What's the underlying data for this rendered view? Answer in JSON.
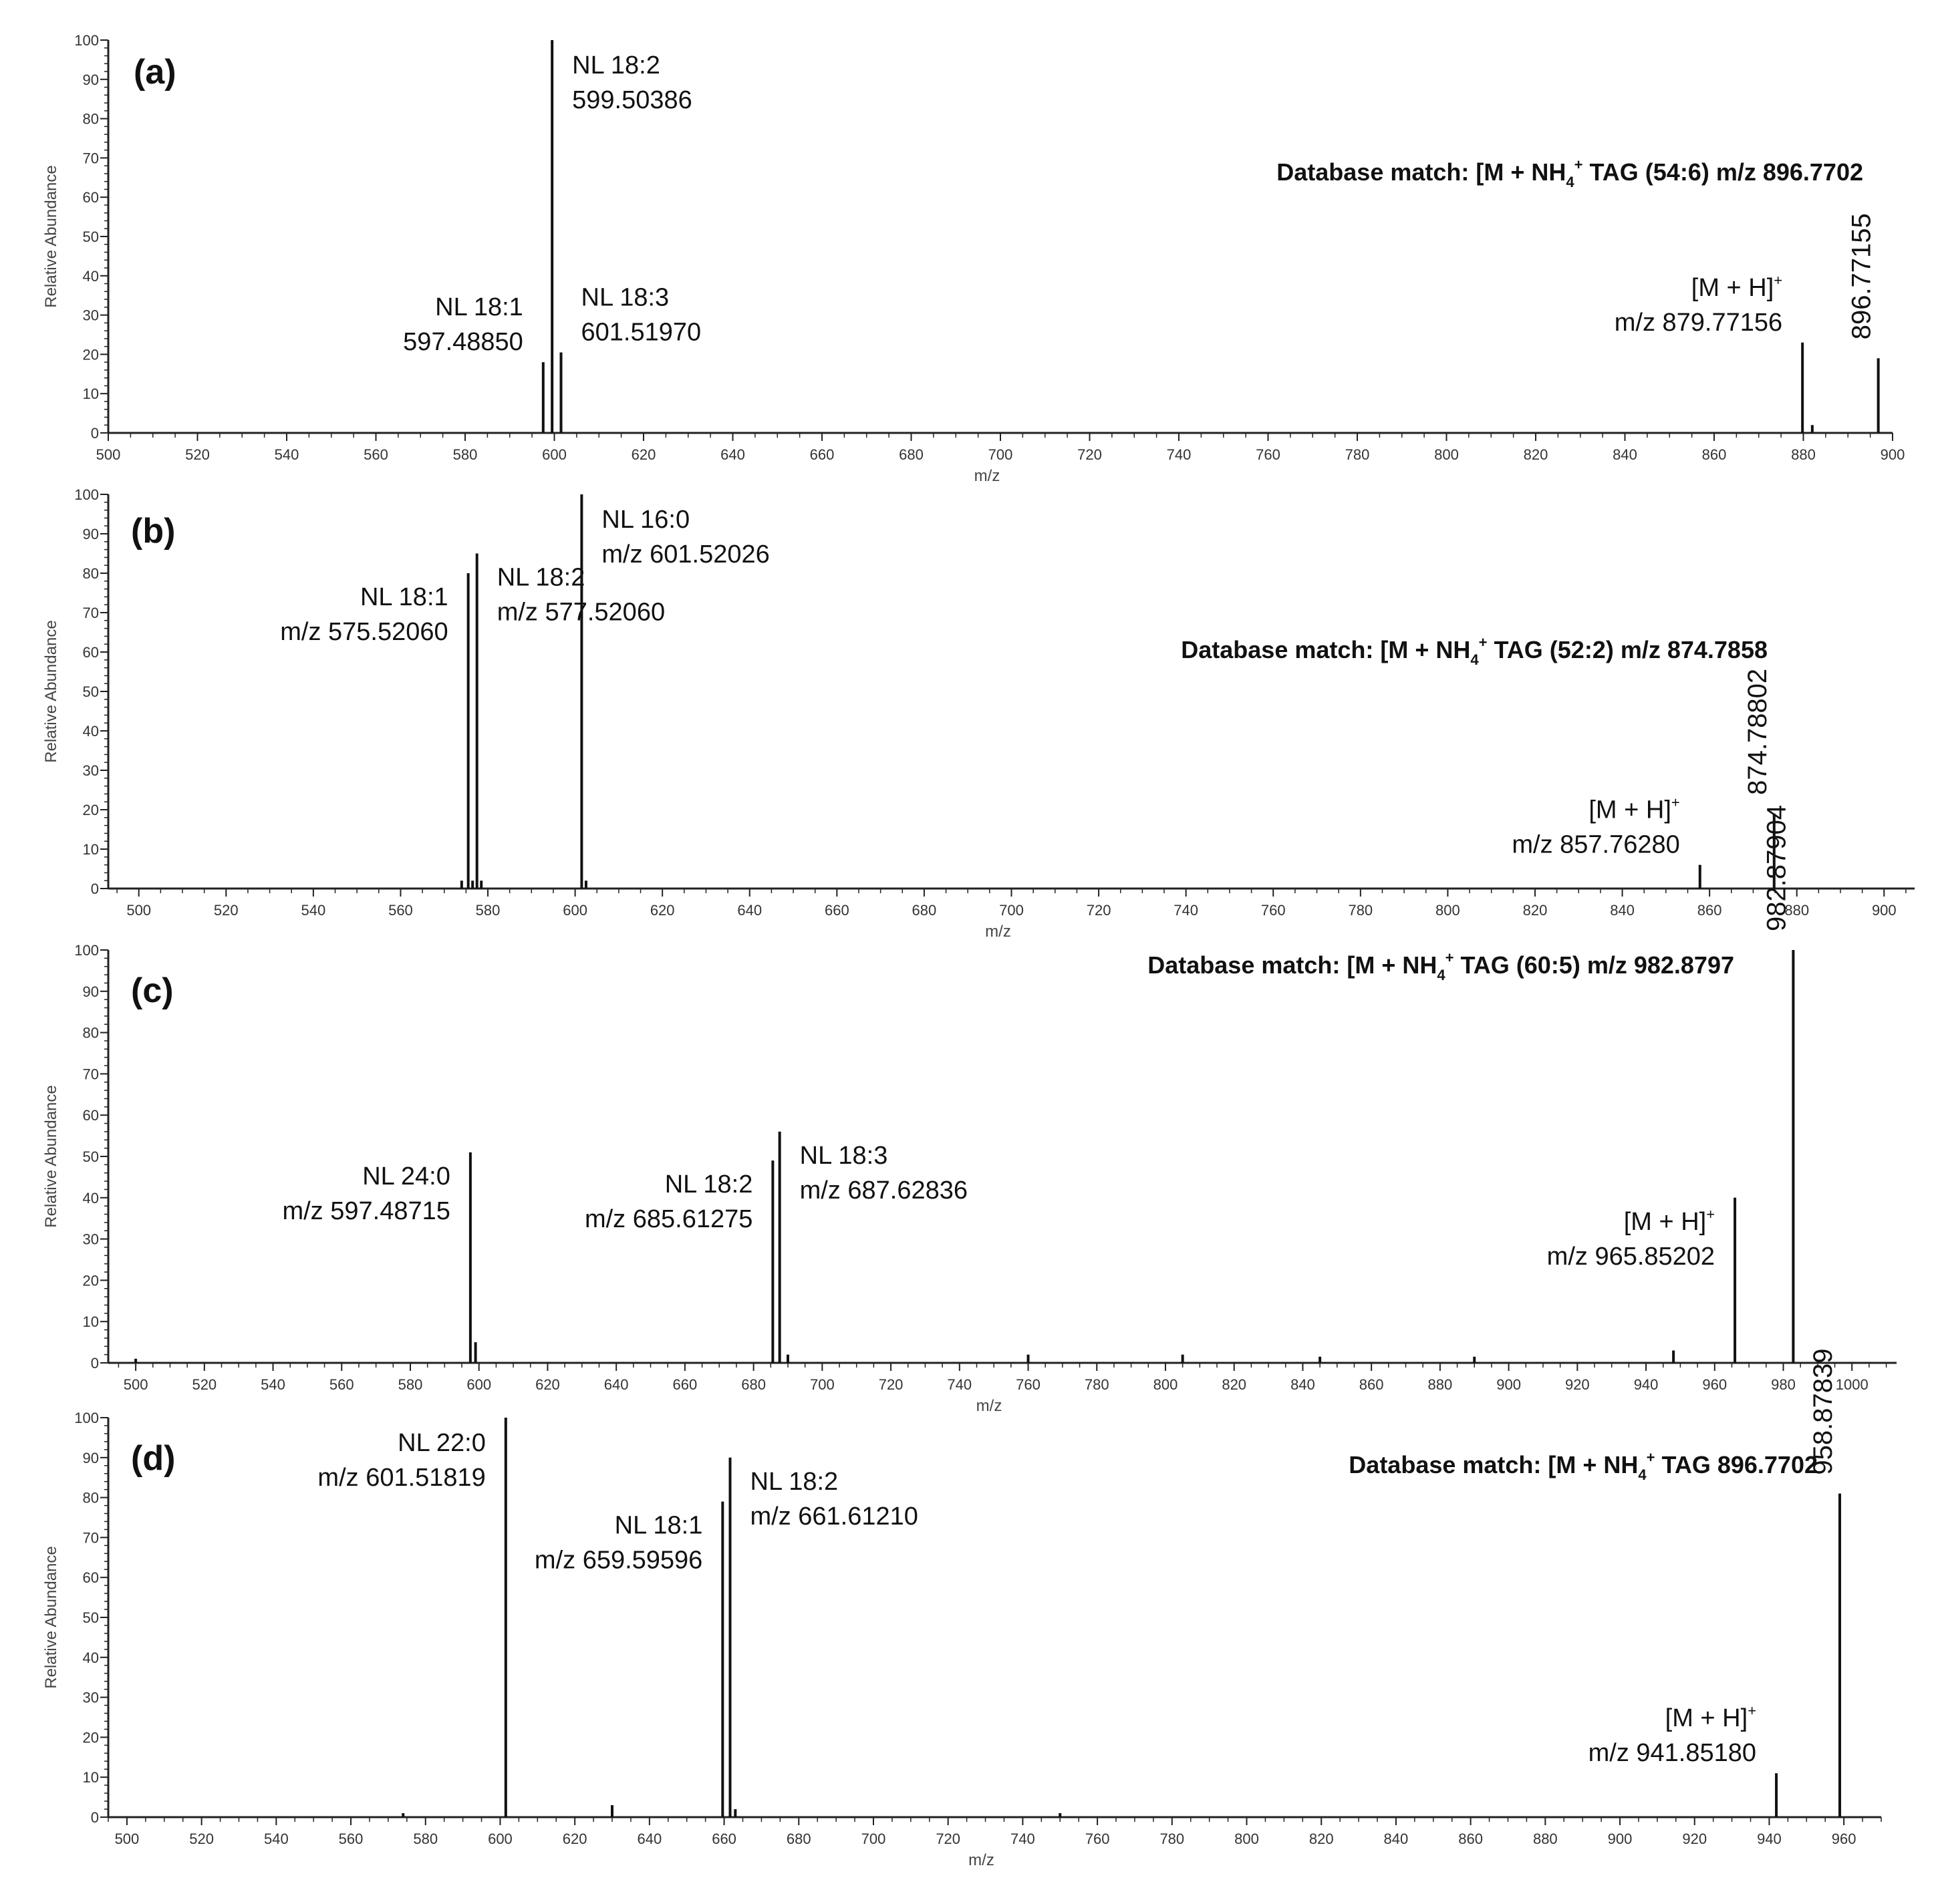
{
  "chart_data": [
    {
      "type": "bar",
      "panel": "(a)",
      "xlabel": "m/z",
      "ylabel": "Relative Abundance",
      "xlim": [
        500,
        900
      ],
      "ylim": [
        0,
        100
      ],
      "xticks": [
        500,
        520,
        540,
        560,
        580,
        600,
        620,
        640,
        660,
        680,
        700,
        720,
        740,
        760,
        780,
        800,
        820,
        840,
        860,
        880,
        900
      ],
      "yticks": [
        0,
        10,
        20,
        30,
        40,
        50,
        60,
        70,
        80,
        90,
        100
      ],
      "peaks": [
        {
          "x": 597.5,
          "y": 18
        },
        {
          "x": 599.5,
          "y": 100
        },
        {
          "x": 601.5,
          "y": 20.5
        },
        {
          "x": 882,
          "y": 2
        },
        {
          "x": 879.8,
          "y": 23
        },
        {
          "x": 896.8,
          "y": 19
        }
      ],
      "annotations": [
        {
          "lines": [
            "NL 18:2",
            "599.50386"
          ],
          "x": 599.5,
          "y": 100,
          "anchor": "start"
        },
        {
          "lines": [
            "NL 18:1",
            "597.48850"
          ],
          "x": 597.5,
          "y": 18,
          "anchor": "end"
        },
        {
          "lines": [
            "NL 18:3",
            "601.51970"
          ],
          "x": 601.5,
          "y": 20.5,
          "anchor": "start"
        },
        {
          "lines": [
            "[M + H]",
            "m/z 879.77156"
          ],
          "x": 879.8,
          "y": 23,
          "anchor": "end",
          "sup": "+"
        }
      ],
      "rotated_label": {
        "text": "896.77155",
        "x": 896.8
      },
      "database_match": {
        "prefix": "Database match: [M + NH",
        "sub": "4",
        "sup": "+",
        "suffix": " TAG (54:6) m/z 896.7702"
      }
    },
    {
      "type": "bar",
      "panel": "(b)",
      "xlabel": "m/z",
      "ylabel": "Relative Abundance",
      "xlim": [
        493,
        907
      ],
      "ylim": [
        0,
        100
      ],
      "xticks": [
        500,
        520,
        540,
        560,
        580,
        600,
        620,
        640,
        660,
        680,
        700,
        720,
        740,
        760,
        780,
        800,
        820,
        840,
        860,
        880,
        900
      ],
      "yticks": [
        0,
        10,
        20,
        30,
        40,
        50,
        60,
        70,
        80,
        90,
        100
      ],
      "peaks": [
        {
          "x": 574,
          "y": 2
        },
        {
          "x": 575.5,
          "y": 80
        },
        {
          "x": 576.5,
          "y": 2
        },
        {
          "x": 577.5,
          "y": 85
        },
        {
          "x": 578.5,
          "y": 2
        },
        {
          "x": 601.5,
          "y": 100
        },
        {
          "x": 602.5,
          "y": 2
        },
        {
          "x": 857.8,
          "y": 6
        },
        {
          "x": 874.8,
          "y": 19
        }
      ],
      "annotations": [
        {
          "lines": [
            "NL 18:2",
            "m/z 577.52060"
          ],
          "x": 577.5,
          "y": 85,
          "anchor": "start"
        },
        {
          "lines": [
            "NL 18:1",
            "m/z 575.52060"
          ],
          "x": 575.5,
          "y": 80,
          "anchor": "end"
        },
        {
          "lines": [
            "NL 16:0",
            "m/z 601.52026"
          ],
          "x": 601.5,
          "y": 100,
          "anchor": "start"
        },
        {
          "lines": [
            "[M + H]",
            "m/z 857.76280"
          ],
          "x": 857.8,
          "y": 6,
          "anchor": "end",
          "sup": "+"
        }
      ],
      "rotated_label": {
        "text": "874.78802",
        "x": 874.8
      },
      "database_match": {
        "prefix": "Database match: [M + NH",
        "sub": "4",
        "sup": "+",
        "suffix": " TAG (52:2) m/z 874.7858"
      }
    },
    {
      "type": "bar",
      "panel": "(c)",
      "xlabel": "m/z",
      "ylabel": "Relative Abundance",
      "xlim": [
        492,
        1013
      ],
      "ylim": [
        0,
        100
      ],
      "xticks": [
        500,
        520,
        540,
        560,
        580,
        600,
        620,
        640,
        660,
        680,
        700,
        720,
        740,
        760,
        780,
        800,
        820,
        840,
        860,
        880,
        900,
        920,
        940,
        960,
        980,
        1000
      ],
      "yticks": [
        0,
        10,
        20,
        30,
        40,
        50,
        60,
        70,
        80,
        90,
        100
      ],
      "peaks": [
        {
          "x": 500,
          "y": 1
        },
        {
          "x": 597.5,
          "y": 51
        },
        {
          "x": 599,
          "y": 5
        },
        {
          "x": 685.6,
          "y": 49
        },
        {
          "x": 687.6,
          "y": 56
        },
        {
          "x": 690,
          "y": 2
        },
        {
          "x": 760,
          "y": 2
        },
        {
          "x": 805,
          "y": 2
        },
        {
          "x": 845,
          "y": 1.5
        },
        {
          "x": 890,
          "y": 1.5
        },
        {
          "x": 948,
          "y": 3
        },
        {
          "x": 965.9,
          "y": 40
        },
        {
          "x": 982.9,
          "y": 100
        }
      ],
      "annotations": [
        {
          "lines": [
            "NL 24:0",
            "m/z 597.48715"
          ],
          "x": 597.5,
          "y": 51,
          "anchor": "end"
        },
        {
          "lines": [
            "NL 18:2",
            "m/z 685.61275"
          ],
          "x": 685.6,
          "y": 49,
          "anchor": "end"
        },
        {
          "lines": [
            "NL 18:3",
            "m/z 687.62836"
          ],
          "x": 687.6,
          "y": 56,
          "anchor": "start"
        },
        {
          "lines": [
            "[M + H]",
            "m/z 965.85202"
          ],
          "x": 965.9,
          "y": 40,
          "anchor": "end",
          "sup": "+"
        }
      ],
      "rotated_label": {
        "text": "982.87904",
        "x": 982.9
      },
      "database_match": {
        "prefix": "Database match: [M + NH",
        "sub": "4",
        "sup": "+",
        "suffix": " TAG (60:5) m/z 982.8797"
      }
    },
    {
      "type": "bar",
      "panel": "(d)",
      "xlabel": "m/z",
      "ylabel": "Relative Abundance",
      "xlim": [
        495,
        970
      ],
      "ylim": [
        0,
        100
      ],
      "xticks": [
        500,
        520,
        540,
        560,
        580,
        600,
        620,
        640,
        660,
        680,
        700,
        720,
        740,
        760,
        780,
        800,
        820,
        840,
        860,
        880,
        900,
        920,
        940,
        960
      ],
      "yticks": [
        0,
        10,
        20,
        30,
        40,
        50,
        60,
        70,
        80,
        90,
        100
      ],
      "peaks": [
        {
          "x": 574,
          "y": 1
        },
        {
          "x": 601.5,
          "y": 100
        },
        {
          "x": 630,
          "y": 3
        },
        {
          "x": 659.6,
          "y": 79
        },
        {
          "x": 661.6,
          "y": 90
        },
        {
          "x": 663,
          "y": 2
        },
        {
          "x": 750,
          "y": 1
        },
        {
          "x": 941.9,
          "y": 11
        },
        {
          "x": 958.9,
          "y": 81
        }
      ],
      "annotations": [
        {
          "lines": [
            "NL 22:0",
            "m/z 601.51819"
          ],
          "x": 601.5,
          "y": 100,
          "anchor": "end"
        },
        {
          "lines": [
            "NL 18:1",
            "m/z 659.59596"
          ],
          "x": 659.6,
          "y": 79,
          "anchor": "end"
        },
        {
          "lines": [
            "NL 18:2",
            "m/z 661.61210"
          ],
          "x": 661.6,
          "y": 90,
          "anchor": "start"
        },
        {
          "lines": [
            "[M + H]",
            "m/z 941.85180"
          ],
          "x": 941.9,
          "y": 11,
          "anchor": "end",
          "sup": "+"
        }
      ],
      "rotated_label": {
        "text": "958.87839",
        "x": 958.9
      },
      "database_match": {
        "prefix": "Database match: [M + NH",
        "sub": "4",
        "sup": "+",
        "suffix": " TAG 896.7702"
      }
    }
  ]
}
